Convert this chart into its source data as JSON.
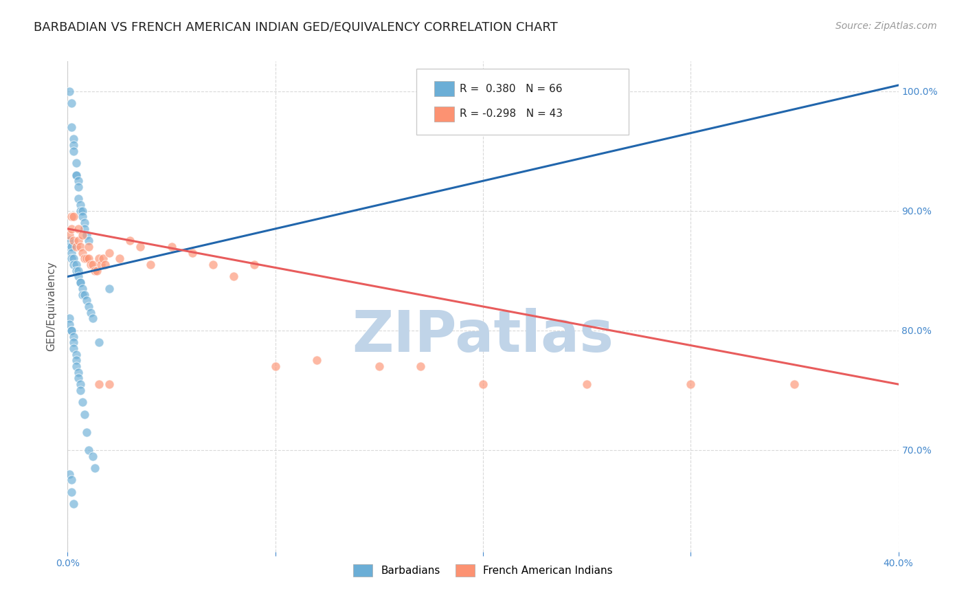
{
  "title": "BARBADIAN VS FRENCH AMERICAN INDIAN GED/EQUIVALENCY CORRELATION CHART",
  "source": "Source: ZipAtlas.com",
  "ylabel": "GED/Equivalency",
  "xmin": 0.0,
  "xmax": 0.4,
  "ymin": 0.615,
  "ymax": 1.025,
  "yticks": [
    0.7,
    0.8,
    0.9,
    1.0
  ],
  "ytick_labels": [
    "70.0%",
    "80.0%",
    "90.0%",
    "100.0%"
  ],
  "blue_color": "#6baed6",
  "pink_color": "#fc9272",
  "blue_line_color": "#2166ac",
  "pink_line_color": "#e85c5c",
  "blue_R": 0.38,
  "blue_N": 66,
  "pink_R": -0.298,
  "pink_N": 43,
  "blue_scatter_x": [
    0.001,
    0.002,
    0.002,
    0.003,
    0.003,
    0.003,
    0.004,
    0.004,
    0.004,
    0.005,
    0.005,
    0.005,
    0.006,
    0.006,
    0.007,
    0.007,
    0.008,
    0.008,
    0.009,
    0.01,
    0.001,
    0.001,
    0.002,
    0.002,
    0.002,
    0.003,
    0.003,
    0.004,
    0.004,
    0.005,
    0.005,
    0.006,
    0.006,
    0.007,
    0.007,
    0.008,
    0.009,
    0.01,
    0.011,
    0.012,
    0.001,
    0.001,
    0.002,
    0.002,
    0.003,
    0.003,
    0.003,
    0.004,
    0.004,
    0.004,
    0.005,
    0.005,
    0.006,
    0.006,
    0.007,
    0.008,
    0.009,
    0.01,
    0.012,
    0.013,
    0.001,
    0.002,
    0.002,
    0.003,
    0.015,
    0.02
  ],
  "blue_scatter_y": [
    1.0,
    0.99,
    0.97,
    0.96,
    0.955,
    0.95,
    0.94,
    0.93,
    0.93,
    0.925,
    0.92,
    0.91,
    0.905,
    0.9,
    0.9,
    0.895,
    0.89,
    0.885,
    0.88,
    0.875,
    0.875,
    0.87,
    0.87,
    0.865,
    0.86,
    0.86,
    0.855,
    0.855,
    0.85,
    0.85,
    0.845,
    0.84,
    0.84,
    0.835,
    0.83,
    0.83,
    0.825,
    0.82,
    0.815,
    0.81,
    0.81,
    0.805,
    0.8,
    0.8,
    0.795,
    0.79,
    0.785,
    0.78,
    0.775,
    0.77,
    0.765,
    0.76,
    0.755,
    0.75,
    0.74,
    0.73,
    0.715,
    0.7,
    0.695,
    0.685,
    0.68,
    0.675,
    0.665,
    0.655,
    0.79,
    0.835
  ],
  "pink_scatter_x": [
    0.001,
    0.002,
    0.003,
    0.004,
    0.005,
    0.006,
    0.007,
    0.008,
    0.009,
    0.01,
    0.011,
    0.012,
    0.013,
    0.014,
    0.015,
    0.016,
    0.017,
    0.018,
    0.02,
    0.025,
    0.03,
    0.035,
    0.04,
    0.05,
    0.06,
    0.07,
    0.08,
    0.09,
    0.1,
    0.12,
    0.15,
    0.17,
    0.2,
    0.25,
    0.3,
    0.35,
    0.002,
    0.003,
    0.005,
    0.007,
    0.01,
    0.015,
    0.02
  ],
  "pink_scatter_y": [
    0.88,
    0.885,
    0.875,
    0.87,
    0.875,
    0.87,
    0.865,
    0.86,
    0.86,
    0.86,
    0.855,
    0.855,
    0.85,
    0.85,
    0.86,
    0.855,
    0.86,
    0.855,
    0.865,
    0.86,
    0.875,
    0.87,
    0.855,
    0.87,
    0.865,
    0.855,
    0.845,
    0.855,
    0.77,
    0.775,
    0.77,
    0.77,
    0.755,
    0.755,
    0.755,
    0.755,
    0.895,
    0.895,
    0.885,
    0.88,
    0.87,
    0.755,
    0.755
  ],
  "background_color": "#ffffff",
  "grid_color": "#d0d0d0",
  "title_fontsize": 13,
  "axis_label_fontsize": 11,
  "tick_fontsize": 10,
  "source_fontsize": 10,
  "legend_blue_label": "Barbadians",
  "legend_pink_label": "French American Indians",
  "watermark_text": "ZIPatlas",
  "watermark_color": "#c0d4e8",
  "watermark_fontsize": 60
}
